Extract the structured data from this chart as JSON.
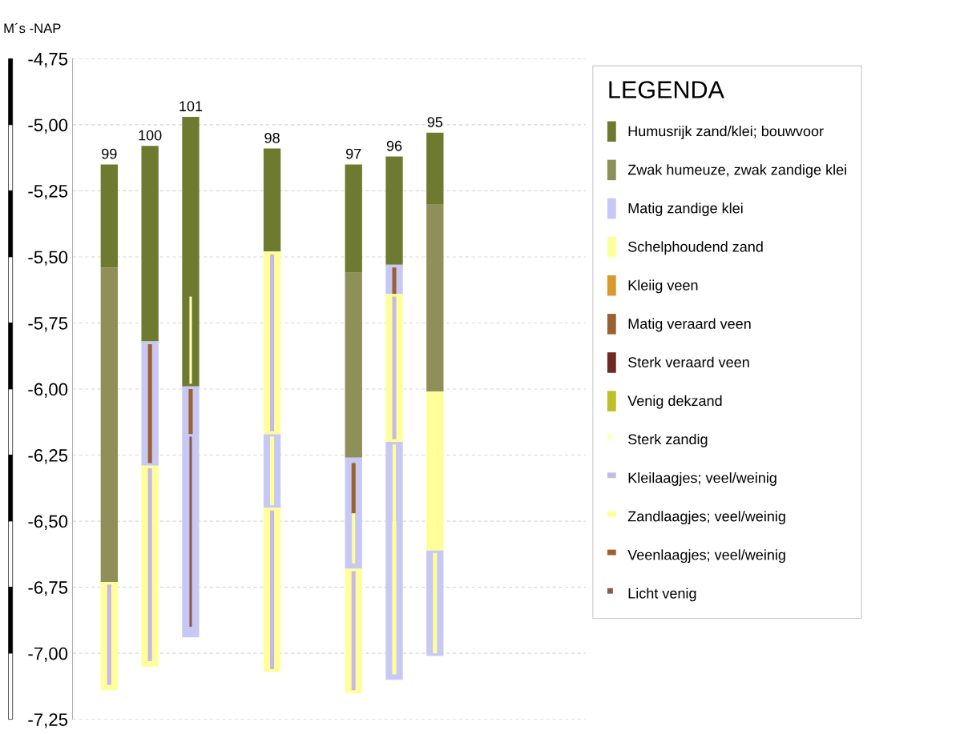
{
  "chart_data": {
    "type": "bar",
    "ylabel": "M´s -NAP",
    "legend_title": "LEGENDA",
    "legend": "right",
    "categories": [
      "99",
      "100",
      "101",
      null,
      "98",
      null,
      "97",
      "96",
      "95"
    ],
    "ylim": [
      -7.25,
      -4.75
    ],
    "yticks": [
      {
        "value": -4.75,
        "label": "-4,75"
      },
      {
        "value": -5.0,
        "label": "-5,00"
      },
      {
        "value": -5.25,
        "label": "-5,25"
      },
      {
        "value": -5.5,
        "label": "-5,50"
      },
      {
        "value": -5.75,
        "label": "-5,75"
      },
      {
        "value": -6.0,
        "label": "-6,00"
      },
      {
        "value": -6.25,
        "label": "-6,25"
      },
      {
        "value": -6.5,
        "label": "-6,50"
      },
      {
        "value": -6.75,
        "label": "-6,75"
      },
      {
        "value": -7.0,
        "label": "-7,00"
      },
      {
        "value": -7.25,
        "label": "-7,25"
      }
    ],
    "grid": "y",
    "series": [
      {
        "name": "Humusrijk zand/klei; bouwvoor",
        "color": "#6e7a2f",
        "base": [
          -5.15,
          -5.08,
          -4.97,
          null,
          -5.09,
          null,
          -5.15,
          -5.12,
          -5.03
        ],
        "values": [
          -0.39,
          -0.74,
          -1.02,
          null,
          -0.39,
          null,
          -0.41,
          -0.41,
          -0.27
        ]
      },
      {
        "name": "Zwak humeuze, zwak zandige klei",
        "color": "#8f8f5a",
        "base": [
          -5.54,
          null,
          null,
          null,
          null,
          null,
          -5.56,
          null,
          -5.3
        ],
        "values": [
          -1.19,
          null,
          null,
          null,
          null,
          null,
          -0.7,
          null,
          -0.71
        ]
      },
      {
        "name": "Matig zandige klei",
        "color": "#c8c8f5",
        "base": [
          null,
          -5.82,
          -5.99,
          null,
          -6.17,
          null,
          -6.26,
          -5.53,
          -6.61
        ],
        "values": [
          null,
          -0.47,
          -0.95,
          null,
          -0.28,
          null,
          -0.42,
          -0.11,
          -0.4
        ]
      },
      {
        "color": "#c8c8f5",
        "base": [
          null,
          null,
          null,
          null,
          null,
          null,
          null,
          -6.2,
          null
        ],
        "values": [
          null,
          null,
          null,
          null,
          null,
          null,
          null,
          -0.9,
          null
        ]
      },
      {
        "name": "Schelphoudend zand",
        "color": "#ffff99",
        "base": [
          -6.73,
          -6.29,
          null,
          null,
          -5.48,
          null,
          -6.68,
          -5.64,
          -6.01
        ],
        "values": [
          -0.41,
          -0.76,
          null,
          null,
          -0.69,
          null,
          -0.47,
          -0.56,
          -0.6
        ]
      },
      {
        "color": "#ffff99",
        "base": [
          null,
          null,
          null,
          null,
          -6.45,
          null,
          null,
          null,
          null
        ],
        "values": [
          null,
          null,
          null,
          null,
          -0.62,
          null,
          null,
          null,
          null
        ]
      },
      {
        "name": "Kleiig veen",
        "color": "#d99a2b",
        "base": [
          null,
          null,
          null,
          null,
          null,
          null,
          null,
          null,
          null
        ],
        "values": [
          null,
          null,
          null,
          null,
          null,
          null,
          null,
          null,
          null
        ]
      },
      {
        "name": "Matig veraard veen",
        "color": "#9b6130",
        "base": [
          null,
          null,
          null,
          null,
          null,
          null,
          null,
          null,
          null
        ],
        "values": [
          null,
          null,
          null,
          null,
          null,
          null,
          null,
          null,
          null
        ]
      },
      {
        "name": "Sterk veraard veen",
        "color": "#6e2a22",
        "base": [
          null,
          null,
          null,
          null,
          null,
          null,
          null,
          null,
          null
        ],
        "values": [
          null,
          null,
          null,
          null,
          null,
          null,
          null,
          null,
          null
        ]
      },
      {
        "name": "Venig dekzand",
        "color": "#bfbf2a",
        "base": [
          null,
          null,
          null,
          null,
          null,
          null,
          null,
          null,
          null
        ],
        "values": [
          null,
          null,
          null,
          null,
          null,
          null,
          null,
          null,
          null
        ]
      },
      {
        "name": "Sterk zandig",
        "color": "#ffffc0",
        "line_style": "dotted",
        "base": [
          null,
          null,
          -5.65,
          null,
          null,
          null,
          null,
          null,
          null
        ],
        "values": [
          null,
          null,
          -0.33,
          null,
          null,
          null,
          null,
          null,
          null
        ]
      },
      {
        "name": "Kleilaagjes; veel/weinig",
        "color": "#c8b8e8",
        "line_style": "solid",
        "base": [
          -6.74,
          -6.3,
          null,
          null,
          -5.49,
          null,
          -6.69,
          -5.65,
          null
        ],
        "values": [
          -0.38,
          -0.73,
          null,
          null,
          -0.67,
          null,
          -0.45,
          -0.54,
          null
        ]
      },
      {
        "color": "#c8b8e8",
        "line_style": "solid",
        "base": [
          null,
          null,
          null,
          null,
          -6.46,
          null,
          null,
          null,
          null
        ],
        "values": [
          null,
          null,
          null,
          null,
          -0.6,
          null,
          null,
          null,
          null
        ]
      },
      {
        "name": "Zandlaagjes; veel/weinig",
        "color": "#ffff99",
        "line_style": "solid",
        "base": [
          null,
          null,
          null,
          null,
          -6.18,
          null,
          null,
          -6.5,
          -6.62
        ],
        "values": [
          null,
          null,
          null,
          null,
          -0.26,
          null,
          null,
          -0.58,
          -0.38
        ]
      },
      {
        "color": "#ffff99",
        "line_style": "dashed",
        "base": [
          null,
          null,
          null,
          null,
          null,
          null,
          -6.47,
          -6.21,
          null
        ],
        "values": [
          null,
          null,
          null,
          null,
          null,
          null,
          -0.19,
          -0.29,
          null
        ]
      },
      {
        "name": "Veenlaagjes; veel/weinig",
        "color": "#9b6130",
        "line_style": "solid",
        "base": [
          null,
          -5.83,
          -6.0,
          null,
          null,
          null,
          -6.28,
          -5.54,
          null
        ],
        "values": [
          null,
          -0.45,
          -0.17,
          null,
          null,
          null,
          -0.19,
          -0.1,
          null
        ]
      },
      {
        "name": "Licht venig",
        "color": "#8a5a4a",
        "line_style": "dotted",
        "base": [
          null,
          null,
          -6.18,
          null,
          null,
          null,
          null,
          null,
          null
        ],
        "values": [
          null,
          null,
          -0.72,
          null,
          null,
          null,
          null,
          null,
          null
        ]
      }
    ]
  }
}
